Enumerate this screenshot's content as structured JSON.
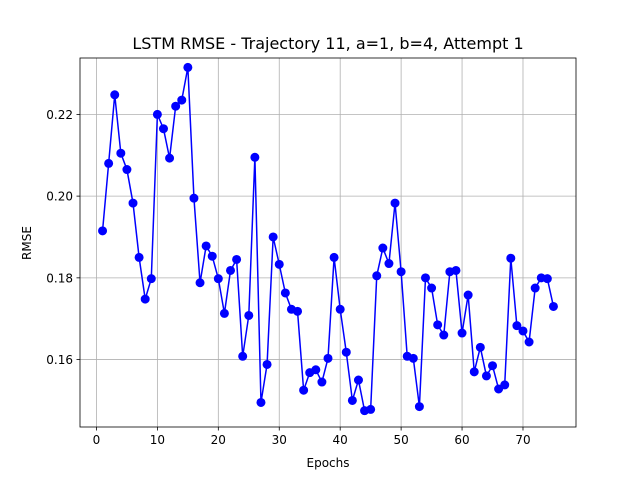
{
  "chart_data": {
    "type": "line",
    "title": "LSTM RMSE - Trajectory 11, a=1, b=4, Attempt 1",
    "xlabel": "Epochs",
    "ylabel": "RMSE",
    "xlim": [
      -2.7,
      78.7
    ],
    "ylim": [
      0.1435,
      0.2338
    ],
    "xticks": [
      0,
      10,
      20,
      30,
      40,
      50,
      60,
      70
    ],
    "yticks": [
      0.16,
      0.18,
      0.2,
      0.22
    ],
    "ytick_labels": [
      "0.16",
      "0.18",
      "0.20",
      "0.22"
    ],
    "grid": true,
    "series": [
      {
        "color": "#0000ff",
        "marker": "circle",
        "x": [
          1,
          2,
          3,
          4,
          5,
          6,
          7,
          8,
          9,
          10,
          11,
          12,
          13,
          14,
          15,
          16,
          17,
          18,
          19,
          20,
          21,
          22,
          23,
          24,
          25,
          26,
          27,
          28,
          29,
          30,
          31,
          32,
          33,
          34,
          35,
          36,
          37,
          38,
          39,
          40,
          41,
          42,
          43,
          44,
          45,
          46,
          47,
          48,
          49,
          50,
          51,
          52,
          53,
          54,
          55,
          56,
          57,
          58,
          59,
          60,
          61,
          62,
          63,
          64,
          65,
          66,
          67,
          68,
          69,
          70,
          71,
          72,
          73,
          74,
          75
        ],
        "values": [
          0.1915,
          0.208,
          0.2248,
          0.2105,
          0.2065,
          0.1983,
          0.185,
          0.1748,
          0.1798,
          0.22,
          0.2165,
          0.2093,
          0.222,
          0.2235,
          0.2315,
          0.1995,
          0.1788,
          0.1878,
          0.1853,
          0.1798,
          0.1713,
          0.1818,
          0.1845,
          0.1608,
          0.1708,
          0.2095,
          0.1495,
          0.1588,
          0.19,
          0.1833,
          0.1763,
          0.1723,
          0.1718,
          0.1525,
          0.1568,
          0.1575,
          0.1545,
          0.1603,
          0.185,
          0.1723,
          0.1618,
          0.15,
          0.155,
          0.1475,
          0.1478,
          0.1805,
          0.1873,
          0.1835,
          0.1983,
          0.1815,
          0.1608,
          0.1603,
          0.1485,
          0.18,
          0.1775,
          0.1685,
          0.166,
          0.1815,
          0.1818,
          0.1665,
          0.1758,
          0.157,
          0.163,
          0.156,
          0.1585,
          0.1528,
          0.1538,
          0.1848,
          0.1683,
          0.167,
          0.1643,
          0.1775,
          0.18,
          0.1798,
          0.173
        ]
      }
    ]
  }
}
